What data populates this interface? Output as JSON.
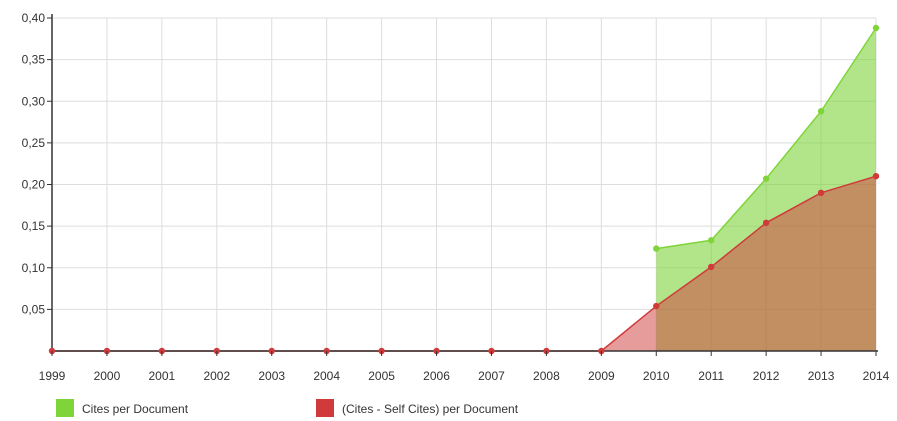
{
  "chart_data": {
    "type": "area",
    "x": [
      "1999",
      "2000",
      "2001",
      "2002",
      "2003",
      "2004",
      "2005",
      "2006",
      "2007",
      "2008",
      "2009",
      "2010",
      "2011",
      "2012",
      "2013",
      "2014"
    ],
    "ylim": [
      0,
      0.4
    ],
    "yticks": [
      "0,05",
      "0,10",
      "0,15",
      "0,20",
      "0,25",
      "0,30",
      "0,35",
      "0,40"
    ],
    "grid": true,
    "legend_position": "bottom-left",
    "series": [
      {
        "name": "Cites per Document",
        "color": "#7fd43a",
        "values": [
          null,
          null,
          null,
          null,
          null,
          null,
          null,
          null,
          null,
          null,
          null,
          0.123,
          0.133,
          0.207,
          0.288,
          0.388
        ]
      },
      {
        "name": "(Cites - Self Cites) per Document",
        "color": "#d03a3a",
        "values": [
          0,
          0,
          0,
          0,
          0,
          0,
          0,
          0,
          0,
          0,
          0,
          0.054,
          0.101,
          0.154,
          0.19,
          0.21
        ]
      }
    ]
  }
}
